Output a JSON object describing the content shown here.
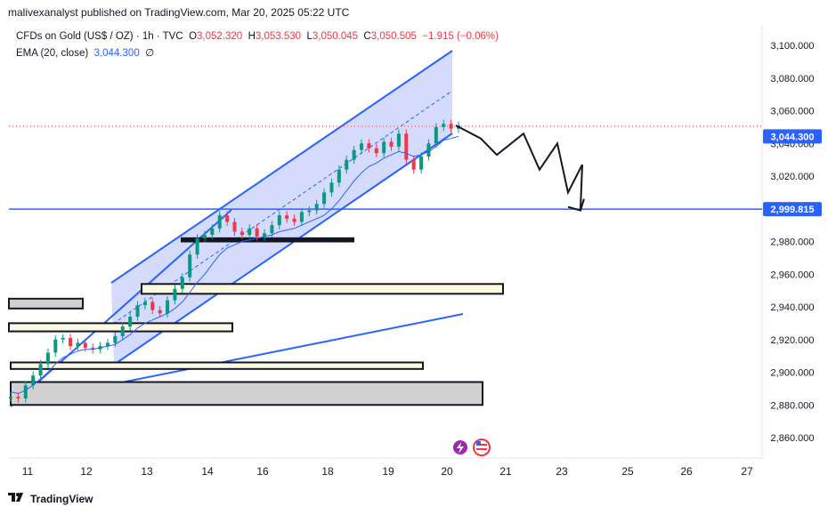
{
  "header": {
    "text": "malivexanalyst published on TradingView.com, Mar 20, 2025 05:22 UTC"
  },
  "legend": {
    "symbol": "CFDs on Gold (US$ / OZ) · 1h · TVC",
    "o_label": "O",
    "o": "3,052.320",
    "h_label": "H",
    "h": "3,053.530",
    "l_label": "L",
    "l": "3,050.045",
    "c_label": "C",
    "c": "3,050.505",
    "change": "−1.915 (−0.06%)",
    "ema_label": "EMA (20, close)",
    "ema_value": "3,044.300",
    "ema_extra": "∅"
  },
  "footer": {
    "brand": "TradingView"
  },
  "colors": {
    "accent": "#2962ff",
    "up": "#089981",
    "down": "#f23645",
    "channel_fill": "#c5cffb",
    "zone_cream": "#fdf8e1",
    "zone_grey": "#d1d1d1"
  },
  "chart_data": {
    "type": "candlestick",
    "symbol": "CFDs on Gold (US$ / OZ)",
    "timeframe": "1h",
    "ylim": [
      2850,
      3110
    ],
    "x_ticks": [
      "11",
      "12",
      "13",
      "14",
      "16",
      "18",
      "19",
      "20",
      "21",
      "23",
      "25",
      "26",
      "27"
    ],
    "y_ticks": [
      "3,100.000",
      "3,080.000",
      "3,060.000",
      "3,040.000",
      "3,020.000",
      "3,000.000",
      "2,980.000",
      "2,960.000",
      "2,940.000",
      "2,920.000",
      "2,900.000",
      "2,880.000",
      "2,860.000"
    ],
    "y_tick_values": [
      3100,
      3080,
      3060,
      3040,
      3020,
      3000,
      2980,
      2960,
      2940,
      2920,
      2900,
      2880,
      2860
    ],
    "price_labels": [
      {
        "value": 3044.3,
        "text": "3,044.300"
      },
      {
        "value": 2999.815,
        "text": "2,999.815"
      }
    ],
    "last_close": 3050.505,
    "horizontal_line": 2999.815,
    "close_path": [
      2885,
      2884,
      2892,
      2898,
      2905,
      2912,
      2920,
      2921,
      2916,
      2918,
      2915,
      2914,
      2916,
      2918,
      2922,
      2928,
      2934,
      2941,
      2943,
      2938,
      2936,
      2944,
      2951,
      2958,
      2972,
      2982,
      2984,
      2988,
      2996,
      2992,
      2986,
      2984,
      2988,
      2983,
      2985,
      2990,
      2996,
      2994,
      2992,
      2998,
      2999,
      3003,
      3010,
      3016,
      3024,
      3030,
      3036,
      3040,
      3037,
      3034,
      3041,
      3038,
      3046,
      3030,
      3024,
      3032,
      3040,
      3050,
      3052,
      3049,
      3051
    ],
    "ema_path": [
      2888,
      2887,
      2889,
      2892,
      2896,
      2900,
      2905,
      2909,
      2911,
      2913,
      2914,
      2914,
      2915,
      2916,
      2917,
      2920,
      2923,
      2927,
      2930,
      2932,
      2934,
      2936,
      2939,
      2943,
      2949,
      2955,
      2960,
      2966,
      2972,
      2976,
      2978,
      2980,
      2981,
      2982,
      2983,
      2984,
      2986,
      2987,
      2988,
      2990,
      2992,
      2994,
      2996,
      3000,
      3005,
      3011,
      3017,
      3022,
      3026,
      3028,
      3031,
      3033,
      3035,
      3034,
      3032,
      3033,
      3035,
      3038,
      3042,
      3043,
      3044.3
    ],
    "zones": [
      {
        "style": "grey",
        "y_top": 2894,
        "y_bottom": 2880
      },
      {
        "style": "cream",
        "y_top": 2906,
        "y_bottom": 2902
      },
      {
        "style": "cream",
        "y_top": 2930,
        "y_bottom": 2925
      },
      {
        "style": "grey",
        "y_top": 2945,
        "y_bottom": 2939
      },
      {
        "style": "cream",
        "y_top": 2954,
        "y_bottom": 2948
      },
      {
        "style": "black",
        "y_top": 2982,
        "y_bottom": 2980
      }
    ],
    "projection_path": [
      3051,
      3043,
      3033,
      3046,
      3024,
      3040,
      3010,
      3027,
      2999
    ]
  }
}
